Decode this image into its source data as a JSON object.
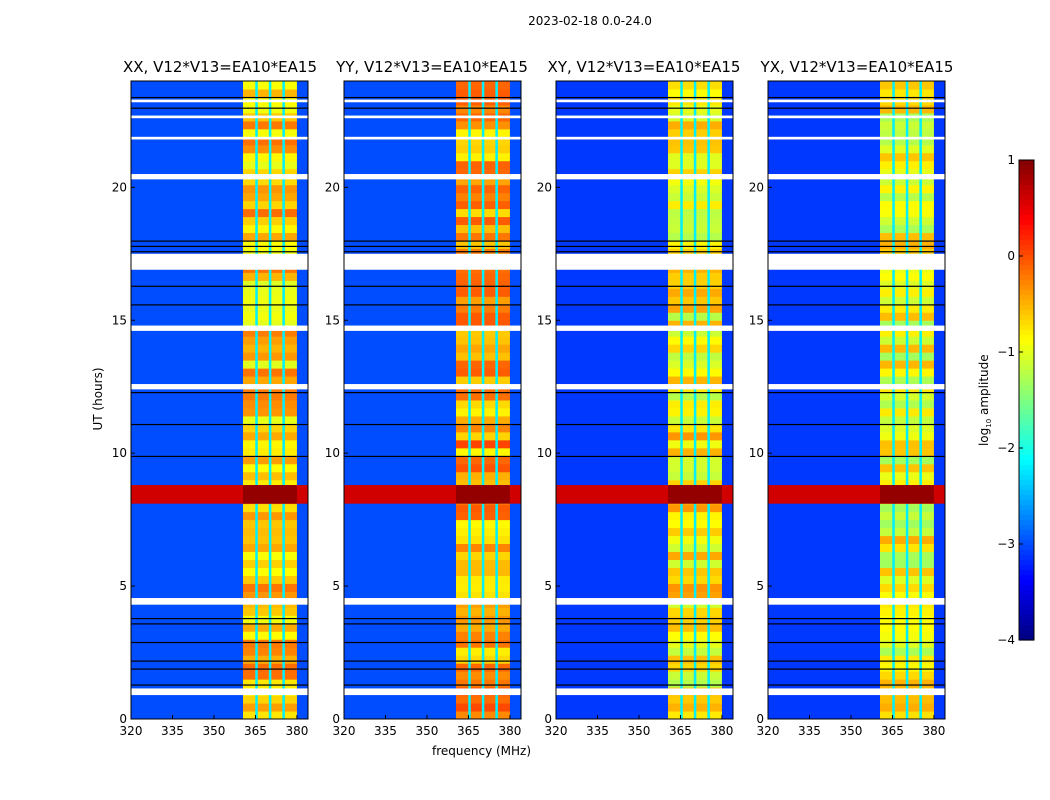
{
  "chart_data": {
    "type": "heatmap",
    "title": "2023-02-18 0.0-24.0",
    "xlabel": "frequency (MHz)",
    "ylabel": "UT (hours)",
    "xlim": [
      320,
      384
    ],
    "ylim": [
      0,
      24
    ],
    "xticks": [
      "320",
      "335",
      "350",
      "365",
      "380"
    ],
    "xtick_values": [
      320,
      335,
      350,
      365,
      380
    ],
    "yticks": [
      "0",
      "5",
      "10",
      "15",
      "20"
    ],
    "ytick_values": [
      0,
      5,
      10,
      15,
      20
    ],
    "colorbar": {
      "label": "log10 amplitude",
      "label_main": "log",
      "label_sub": "10",
      "label_rest": " amplitude",
      "range": [
        -4,
        1
      ],
      "ticks": [
        "1",
        "0",
        "−1",
        "−2",
        "−3",
        "−4"
      ],
      "tick_values": [
        1,
        0,
        -1,
        -2,
        -3,
        -4
      ],
      "colormap": "jet"
    },
    "panels": [
      {
        "title": "XX, V12*V13=EA10*EA15",
        "rfi_band_mhz": [
          360.5,
          380
        ],
        "background_log_amp": -3.0,
        "rfi_log_amp": -0.6
      },
      {
        "title": "YY, V12*V13=EA10*EA15",
        "rfi_band_mhz": [
          360.5,
          380
        ],
        "background_log_amp": -3.0,
        "rfi_log_amp": -0.4
      },
      {
        "title": "XY, V12*V13=EA10*EA15",
        "rfi_band_mhz": [
          360.5,
          380
        ],
        "background_log_amp": -3.1,
        "rfi_log_amp": -0.8
      },
      {
        "title": "YX, V12*V13=EA10*EA15",
        "rfi_band_mhz": [
          360.5,
          380
        ],
        "background_log_amp": -3.1,
        "rfi_log_amp": -0.9
      }
    ],
    "rfi_subband_gaps_mhz": [
      365.3,
      370.2,
      375.1
    ],
    "broadband_burst_ut": [
      8.1,
      8.8
    ],
    "burst_log_amp": 0.9,
    "flagged_ut_ranges": [
      [
        0.9,
        1.15
      ],
      [
        4.3,
        4.55
      ],
      [
        12.4,
        12.6
      ],
      [
        14.6,
        14.8
      ],
      [
        16.9,
        17.5
      ],
      [
        20.3,
        20.5
      ],
      [
        21.8,
        21.9
      ],
      [
        22.6,
        22.7
      ],
      [
        23.2,
        23.3
      ]
    ],
    "dark_lines_ut": [
      1.3,
      1.9,
      2.2,
      2.9,
      3.6,
      3.8,
      9.9,
      11.1,
      12.3,
      15.6,
      16.3,
      17.6,
      17.8,
      18.0,
      23.0,
      23.4
    ]
  }
}
